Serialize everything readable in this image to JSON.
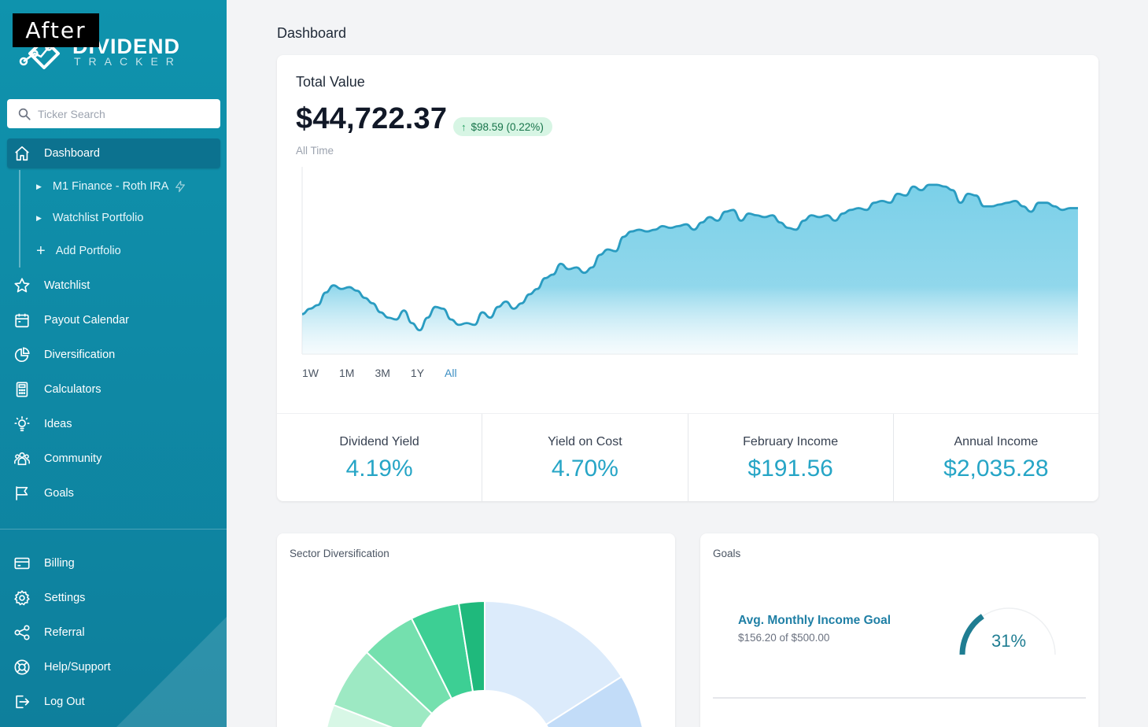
{
  "overlay_label": "After",
  "brand": {
    "name_line1": "DIVIDEND",
    "name_line2": "TRACKER"
  },
  "search": {
    "placeholder": "Ticker Search",
    "value": ""
  },
  "nav": {
    "dashboard": "Dashboard",
    "portfolios": [
      {
        "label": "M1 Finance - Roth IRA",
        "icon": "bolt-icon"
      },
      {
        "label": "Watchlist Portfolio"
      }
    ],
    "add_portfolio": "Add Portfolio",
    "items": [
      {
        "label": "Watchlist",
        "icon": "star-icon"
      },
      {
        "label": "Payout Calendar",
        "icon": "calendar-icon"
      },
      {
        "label": "Diversification",
        "icon": "pie-chart-icon"
      },
      {
        "label": "Calculators",
        "icon": "calculator-icon"
      },
      {
        "label": "Ideas",
        "icon": "lightbulb-icon"
      },
      {
        "label": "Community",
        "icon": "community-icon"
      },
      {
        "label": "Goals",
        "icon": "flag-icon"
      }
    ],
    "bottom_items": [
      {
        "label": "Billing",
        "icon": "credit-card-icon"
      },
      {
        "label": "Settings",
        "icon": "gear-icon"
      },
      {
        "label": "Referral",
        "icon": "share-icon"
      },
      {
        "label": "Help/Support",
        "icon": "lifebuoy-icon"
      },
      {
        "label": "Log Out",
        "icon": "logout-icon"
      }
    ]
  },
  "page": {
    "title": "Dashboard"
  },
  "total_value": {
    "label": "Total Value",
    "value": "$44,722.37",
    "change": "$98.59 (0.22%)",
    "period": "All Time",
    "ranges": [
      "1W",
      "1M",
      "3M",
      "1Y",
      "All"
    ],
    "active_range": "All"
  },
  "chart_data": {
    "type": "area",
    "title": "",
    "xlabel": "",
    "ylabel": "",
    "grid": false,
    "legend": "none",
    "series": [
      {
        "values": [
          37,
          40,
          42,
          49,
          53,
          51,
          52,
          50,
          46,
          43,
          38,
          35,
          34,
          39,
          32,
          28,
          35,
          41,
          40,
          34,
          31,
          32,
          31,
          38,
          35,
          41,
          44,
          40,
          43,
          48,
          51,
          57,
          59,
          65,
          62,
          63,
          60,
          63,
          70,
          73,
          72,
          80,
          83,
          84,
          83,
          84,
          86,
          85,
          86,
          87,
          84,
          88,
          91,
          89,
          94,
          95,
          89,
          93,
          92,
          91,
          92,
          88,
          85,
          84,
          89,
          92,
          91,
          92,
          89,
          93,
          95,
          96,
          95,
          99,
          100,
          99,
          104,
          103,
          108,
          106,
          109,
          109,
          108,
          106,
          99,
          104,
          103,
          97,
          97,
          98,
          99,
          100,
          97,
          94,
          99,
          99,
          97,
          95,
          96,
          96
        ]
      }
    ],
    "color": "#2a9cc1"
  },
  "stats": [
    {
      "label": "Dividend Yield",
      "value": "4.19%"
    },
    {
      "label": "Yield on Cost",
      "value": "4.70%"
    },
    {
      "label": "February Income",
      "value": "$191.56"
    },
    {
      "label": "Annual Income",
      "value": "$2,035.28"
    }
  ],
  "sector": {
    "title": "Sector Diversification"
  },
  "goals": {
    "title": "Goals",
    "items": [
      {
        "name": "Avg. Monthly Income Goal",
        "progress": "$156.20 of $500.00",
        "percent_label": "31%",
        "fraction": 0.31
      }
    ]
  },
  "colors": {
    "accent": "#26a5c6",
    "sidebar": "#0f8aa6",
    "positive": "#d7f5e4"
  }
}
